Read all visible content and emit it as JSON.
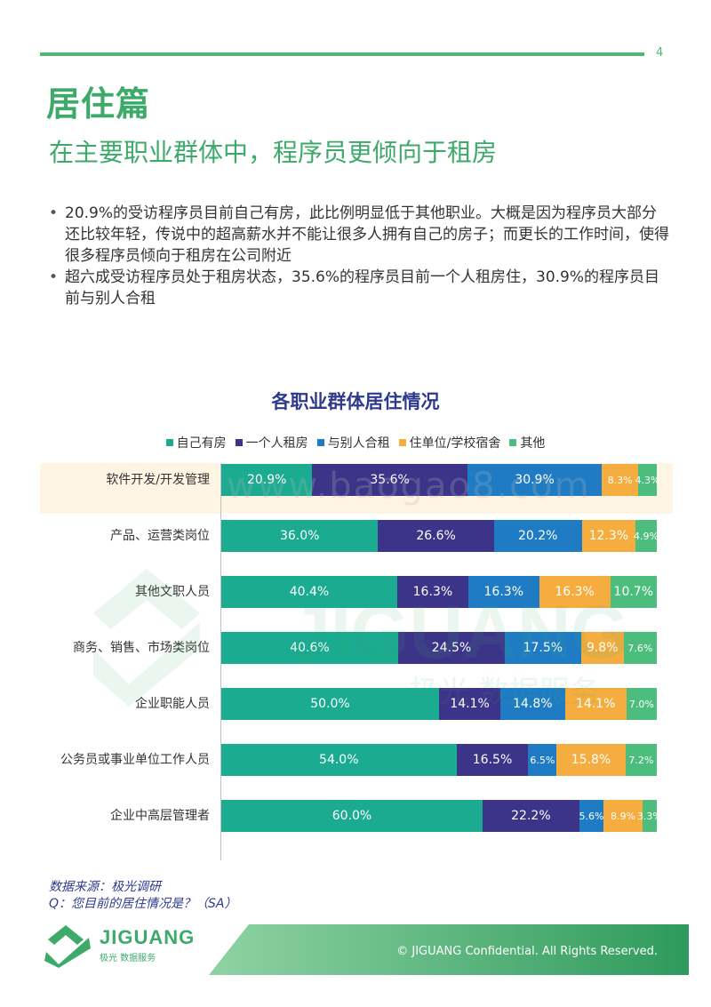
{
  "page": {
    "number": "4",
    "section_title": "居住篇",
    "headline": "在主要职业群体中，程序员更倾向于租房",
    "bullets": [
      "20.9%的受访程序员目前自己有房，此比例明显低于其他职业。大概是因为程序员大部分还比较年轻，传说中的超高薪水并不能让很多人拥有自己的房子；而更长的工作时间，使得很多程序员倾向于租房在公司附近",
      "超六成受访程序员处于租房状态，35.6%的程序员目前一个人租房住，30.9%的程序员目前与别人合租"
    ],
    "watermark_url": "www.baogao8.com",
    "watermark_brand": "JIGUANG",
    "watermark_sub": "极光  数据服务",
    "source_lines": [
      "数据来源：极光调研",
      "Q：您目前的居住情况是？（SA）"
    ],
    "footer": {
      "brand": "JIGUANG",
      "sub": "极光  数据服务",
      "copyright": "© JIGUANG Confidential. All Rights Reserved."
    },
    "colors": {
      "accent_green": "#3daa6a",
      "navy": "#2f3a8f"
    }
  },
  "chart_data": {
    "type": "bar",
    "orientation": "horizontal",
    "stacked": true,
    "normalized": true,
    "title": "各职业群体居住情况",
    "legend_position": "top",
    "categories": [
      "软件开发/开发管理",
      "产品、运营类岗位",
      "其他文职人员",
      "商务、销售、市场类岗位",
      "企业职能人员",
      "公务员或事业单位工作人员",
      "企业中高层管理者"
    ],
    "series": [
      {
        "name": "自己有房",
        "color": "#1aab91",
        "values": [
          20.9,
          36.0,
          40.4,
          40.6,
          50.0,
          54.0,
          60.0
        ],
        "labels": [
          "20.9%",
          "36.0%",
          "40.4%",
          "40.6%",
          "50.0%",
          "54.0%",
          "60.0%"
        ]
      },
      {
        "name": "一个人租房",
        "color": "#3c3489",
        "values": [
          35.6,
          26.6,
          16.3,
          24.5,
          14.1,
          16.5,
          22.2
        ],
        "labels": [
          "35.6%",
          "26.6%",
          "16.3%",
          "24.5%",
          "14.1%",
          "16.5%",
          "22.2%"
        ]
      },
      {
        "name": "与别人合租",
        "color": "#1f7cc4",
        "values": [
          30.9,
          20.2,
          16.3,
          17.5,
          14.8,
          6.5,
          5.6
        ],
        "labels": [
          "30.9%",
          "20.2%",
          "16.3%",
          "17.5%",
          "14.8%",
          "6.5%",
          "5.6%"
        ]
      },
      {
        "name": "住单位/学校宿舍",
        "color": "#f6ad3f",
        "values": [
          8.3,
          12.3,
          16.3,
          9.8,
          14.1,
          15.8,
          8.9
        ],
        "labels": [
          "8.3%",
          "12.3%",
          "16.3%",
          "9.8%",
          "14.1%",
          "15.8%",
          "8.9%"
        ]
      },
      {
        "name": "其他",
        "color": "#4cbd7d",
        "values": [
          4.3,
          4.9,
          10.7,
          7.6,
          7.0,
          7.2,
          3.3
        ],
        "labels": [
          "4.3%",
          "4.9%",
          "10.7%",
          "7.6%",
          "7.0%",
          "7.2%",
          "3.3%"
        ]
      }
    ],
    "highlighted_category": "软件开发/开发管理",
    "grid": false
  }
}
